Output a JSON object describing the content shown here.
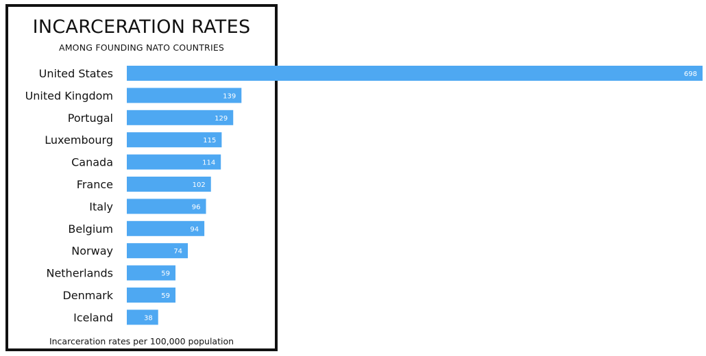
{
  "chart_data": {
    "type": "bar",
    "orientation": "horizontal",
    "title": "INCARCERATION RATES",
    "subtitle": "AMONG FOUNDING NATO COUNTRIES",
    "footnote": "Incarceration rates per 100,000 population",
    "categories": [
      "United States",
      "United Kingdom",
      "Portugal",
      "Luxembourg",
      "Canada",
      "France",
      "Italy",
      "Belgium",
      "Norway",
      "Netherlands",
      "Denmark",
      "Iceland"
    ],
    "values": [
      698,
      139,
      129,
      115,
      114,
      102,
      96,
      94,
      74,
      59,
      59,
      38
    ],
    "value_labels": [
      "698",
      "139",
      "129",
      "115",
      "114",
      "102",
      "96",
      "94",
      "74",
      "59",
      "59",
      "38"
    ],
    "xlim": [
      0,
      698
    ],
    "grid": false,
    "legend": "none",
    "bar_color": "#4ea8f2"
  }
}
